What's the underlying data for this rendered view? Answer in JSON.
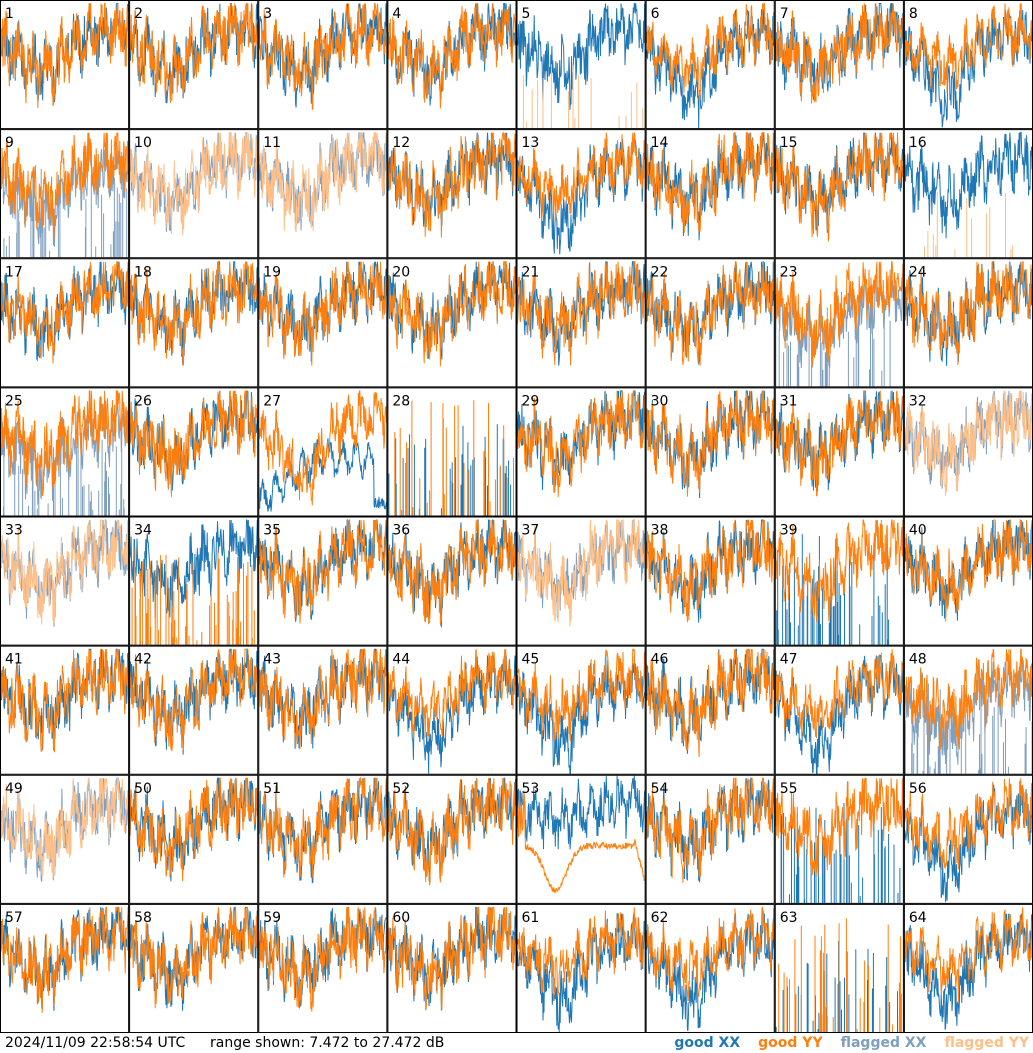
{
  "chart_data": {
    "type": "line",
    "layout": "small-multiples grid, 8 columns x 8 rows",
    "panel_count": 64,
    "panel_labels": [
      "1",
      "2",
      "3",
      "4",
      "5",
      "6",
      "7",
      "8",
      "9",
      "10",
      "11",
      "12",
      "13",
      "14",
      "15",
      "16",
      "17",
      "18",
      "19",
      "20",
      "21",
      "22",
      "23",
      "24",
      "25",
      "26",
      "27",
      "28",
      "29",
      "30",
      "31",
      "32",
      "33",
      "34",
      "35",
      "36",
      "37",
      "38",
      "39",
      "40",
      "41",
      "42",
      "43",
      "44",
      "45",
      "46",
      "47",
      "48",
      "49",
      "50",
      "51",
      "52",
      "53",
      "54",
      "55",
      "56",
      "57",
      "58",
      "59",
      "60",
      "61",
      "62",
      "63",
      "64"
    ],
    "series": [
      {
        "name": "good XX",
        "color": "#1f77b4"
      },
      {
        "name": "good YY",
        "color": "#ff7f0e"
      },
      {
        "name": "flagged XX",
        "color": "#7f9fbf"
      },
      {
        "name": "flagged YY",
        "color": "#ffbf87"
      }
    ],
    "ylim": [
      7.472,
      27.472
    ],
    "yunit": "dB",
    "panel_styles": {
      "normal": [
        1,
        2,
        3,
        4,
        7,
        12,
        14,
        15,
        17,
        18,
        19,
        20,
        21,
        22,
        24,
        26,
        29,
        30,
        31,
        35,
        36,
        38,
        40,
        41,
        42,
        43,
        46,
        50,
        51,
        52,
        54,
        57,
        58,
        59,
        60
      ],
      "xx_low_offset": [
        6,
        8,
        13,
        44,
        45,
        47,
        56,
        61,
        62,
        64
      ],
      "xx_flagged_spikes": [
        5,
        16
      ],
      "yy_flagged_xx": [
        9,
        23,
        25,
        48
      ],
      "both_flagged": [
        10,
        11,
        32,
        33,
        37,
        49
      ],
      "yy_spiky_xx_normal": [
        34
      ],
      "xx_spiky_yy_normal": [
        39,
        55
      ],
      "xx_step_low": [
        27
      ],
      "both_spiky": [
        28,
        63
      ],
      "yy_smooth_dip": [
        53
      ]
    },
    "timestamp": "2024/11/09 22:58:54 UTC",
    "range_text": "range shown: 7.472 to 27.472 dB"
  },
  "legend": {
    "good_xx": "good XX",
    "good_yy": "good YY",
    "flagged_xx": "flagged XX",
    "flagged_yy": "flagged YY"
  },
  "colors": {
    "good_xx": "#1f77b4",
    "good_yy": "#ff7f0e",
    "flagged_xx": "#7f9fbf",
    "flagged_yy": "#ffbf87",
    "frame": "#000000"
  }
}
